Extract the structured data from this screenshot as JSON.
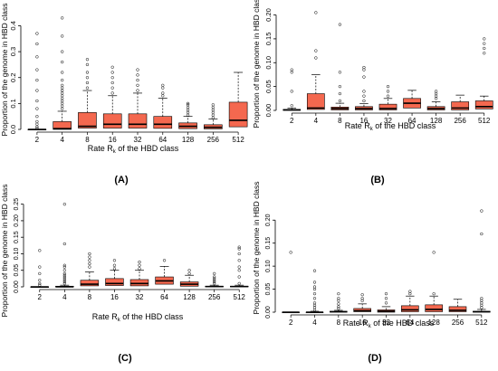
{
  "chart_data": [
    {
      "type": "box",
      "panel_label": "(A)",
      "xlabel": "Rate R",
      "xlabel_sub": "k",
      "xlabel_tail": " of the HBD class",
      "ylabel": "Proportion of the genome in HBD class",
      "categories": [
        "2",
        "4",
        "8",
        "16",
        "32",
        "64",
        "128",
        "256",
        "512"
      ],
      "ylim": [
        0,
        0.44
      ],
      "yticks": [
        0.0,
        0.1,
        0.2,
        0.3,
        0.4
      ],
      "ytick_labels": [
        "0.0",
        "0.1",
        "0.2",
        "0.3",
        "0.4"
      ],
      "boxes": [
        {
          "min": 0,
          "q1": 0,
          "median": 0,
          "q3": 0,
          "max": 0,
          "outliers": [
            0.005,
            0.01,
            0.02,
            0.03,
            0.05,
            0.08,
            0.11,
            0.15,
            0.19,
            0.23,
            0.28,
            0.33,
            0.37
          ]
        },
        {
          "min": 0,
          "q1": 0.0,
          "median": 0.003,
          "q3": 0.03,
          "max": 0.07,
          "outliers": [
            0.08,
            0.09,
            0.1,
            0.11,
            0.12,
            0.13,
            0.14,
            0.15,
            0.16,
            0.17,
            0.19,
            0.22,
            0.26,
            0.3,
            0.36,
            0.43
          ]
        },
        {
          "min": 0,
          "q1": 0.005,
          "median": 0.012,
          "q3": 0.065,
          "max": 0.15,
          "outliers": [
            0.16,
            0.18,
            0.2,
            0.22,
            0.25,
            0.27
          ]
        },
        {
          "min": 0,
          "q1": 0.005,
          "median": 0.02,
          "q3": 0.06,
          "max": 0.13,
          "outliers": [
            0.14,
            0.16,
            0.18,
            0.2,
            0.22,
            0.24
          ]
        },
        {
          "min": 0,
          "q1": 0.005,
          "median": 0.02,
          "q3": 0.06,
          "max": 0.14,
          "outliers": [
            0.15,
            0.17,
            0.19,
            0.21,
            0.23
          ]
        },
        {
          "min": 0,
          "q1": 0.004,
          "median": 0.02,
          "q3": 0.05,
          "max": 0.12,
          "outliers": [
            0.13,
            0.14,
            0.16,
            0.17
          ]
        },
        {
          "min": 0,
          "q1": 0.003,
          "median": 0.012,
          "q3": 0.025,
          "max": 0.05,
          "outliers": [
            0.055,
            0.065,
            0.075,
            0.085,
            0.095,
            0.1
          ]
        },
        {
          "min": 0,
          "q1": 0.002,
          "median": 0.008,
          "q3": 0.018,
          "max": 0.04,
          "outliers": [
            0.045,
            0.055,
            0.065,
            0.075,
            0.085,
            0.095
          ]
        },
        {
          "min": 0,
          "q1": 0.01,
          "median": 0.035,
          "q3": 0.105,
          "max": 0.22,
          "outliers": []
        }
      ]
    },
    {
      "type": "box",
      "panel_label": "(B)",
      "xlabel": "Rate R",
      "xlabel_sub": "k",
      "xlabel_tail": " of the HBD class",
      "ylabel": "Proportion of the genome in HBD class",
      "categories": [
        "2",
        "4",
        "8",
        "16",
        "32",
        "64",
        "128",
        "256",
        "512"
      ],
      "ylim": [
        0,
        0.22
      ],
      "yticks": [
        0.0,
        0.05,
        0.1,
        0.15,
        0.2
      ],
      "ytick_labels": [
        "0.00",
        "0.05",
        "0.10",
        "0.15",
        "0.20"
      ],
      "boxes": [
        {
          "min": 0,
          "q1": 0,
          "median": 0.001,
          "q3": 0.002,
          "max": 0.005,
          "outliers": [
            0.01,
            0.04,
            0.08,
            0.085
          ]
        },
        {
          "min": 0,
          "q1": 0.002,
          "median": 0.005,
          "q3": 0.035,
          "max": 0.075,
          "outliers": [
            0.11,
            0.125,
            0.205
          ]
        },
        {
          "min": 0,
          "q1": 0.001,
          "median": 0.004,
          "q3": 0.007,
          "max": 0.015,
          "outliers": [
            0.02,
            0.035,
            0.05,
            0.08,
            0.18
          ]
        },
        {
          "min": 0,
          "q1": 0.001,
          "median": 0.004,
          "q3": 0.008,
          "max": 0.014,
          "outliers": [
            0.02,
            0.03,
            0.04,
            0.07,
            0.085,
            0.09
          ]
        },
        {
          "min": 0,
          "q1": 0.001,
          "median": 0.004,
          "q3": 0.013,
          "max": 0.025,
          "outliers": [
            0.03,
            0.04,
            0.05
          ]
        },
        {
          "min": 0,
          "q1": 0.005,
          "median": 0.015,
          "q3": 0.025,
          "max": 0.042,
          "outliers": []
        },
        {
          "min": 0,
          "q1": 0.001,
          "median": 0.004,
          "q3": 0.008,
          "max": 0.018,
          "outliers": [
            0.025,
            0.03,
            0.035,
            0.04
          ]
        },
        {
          "min": 0,
          "q1": 0.001,
          "median": 0.005,
          "q3": 0.018,
          "max": 0.032,
          "outliers": []
        },
        {
          "min": 0,
          "q1": 0.003,
          "median": 0.008,
          "q3": 0.02,
          "max": 0.03,
          "outliers": [
            0.12,
            0.13,
            0.14,
            0.15
          ]
        }
      ]
    },
    {
      "type": "box",
      "panel_label": "(C)",
      "xlabel": "Rate R",
      "xlabel_sub": "k",
      "xlabel_tail": " of the HBD class",
      "ylabel": "Proportion of the genome in HBD class",
      "categories": [
        "2",
        "4",
        "8",
        "16",
        "32",
        "64",
        "128",
        "256",
        "512"
      ],
      "ylim": [
        0,
        0.26
      ],
      "yticks": [
        0.0,
        0.05,
        0.1,
        0.15,
        0.2,
        0.25
      ],
      "ytick_labels": [
        "0.00",
        "0.05",
        "0.10",
        "0.15",
        "0.20",
        "0.25"
      ],
      "boxes": [
        {
          "min": 0,
          "q1": 0,
          "median": 0,
          "q3": 0,
          "max": 0,
          "outliers": [
            0.005,
            0.01,
            0.02,
            0.04,
            0.06,
            0.11
          ]
        },
        {
          "min": 0,
          "q1": 0,
          "median": 0,
          "q3": 0.002,
          "max": 0.005,
          "outliers": [
            0.01,
            0.015,
            0.02,
            0.025,
            0.03,
            0.035,
            0.04,
            0.05,
            0.06,
            0.065,
            0.13,
            0.25
          ]
        },
        {
          "min": 0,
          "q1": 0.003,
          "median": 0.008,
          "q3": 0.02,
          "max": 0.045,
          "outliers": [
            0.06,
            0.07,
            0.08,
            0.09,
            0.1
          ]
        },
        {
          "min": 0,
          "q1": 0.004,
          "median": 0.01,
          "q3": 0.025,
          "max": 0.05,
          "outliers": [
            0.055,
            0.065,
            0.08
          ]
        },
        {
          "min": 0,
          "q1": 0.003,
          "median": 0.01,
          "q3": 0.022,
          "max": 0.05,
          "outliers": [
            0.055,
            0.065,
            0.075
          ]
        },
        {
          "min": 0,
          "q1": 0.008,
          "median": 0.018,
          "q3": 0.03,
          "max": 0.062,
          "outliers": [
            0.08
          ]
        },
        {
          "min": 0,
          "q1": 0.002,
          "median": 0.008,
          "q3": 0.015,
          "max": 0.035,
          "outliers": [
            0.04,
            0.05
          ]
        },
        {
          "min": 0,
          "q1": 0,
          "median": 0.001,
          "q3": 0.002,
          "max": 0.005,
          "outliers": [
            0.01,
            0.015,
            0.02,
            0.025,
            0.03,
            0.04
          ]
        },
        {
          "min": 0,
          "q1": 0,
          "median": 0.001,
          "q3": 0.002,
          "max": 0.005,
          "outliers": [
            0.01,
            0.03,
            0.05,
            0.06,
            0.08,
            0.1,
            0.115,
            0.12
          ]
        }
      ]
    },
    {
      "type": "box",
      "panel_label": "(D)",
      "xlabel": "Rate R",
      "xlabel_sub": "k",
      "xlabel_tail": " of the HBD class",
      "ylabel": "Proportion of the genome in HBD class",
      "categories": [
        "2",
        "4",
        "8",
        "16",
        "32",
        "64",
        "128",
        "256",
        "512"
      ],
      "ylim": [
        0,
        0.23
      ],
      "yticks": [
        0.0,
        0.05,
        0.1,
        0.15,
        0.2
      ],
      "ytick_labels": [
        "0.00",
        "0.05",
        "0.10",
        "0.15",
        "0.20"
      ],
      "boxes": [
        {
          "min": 0,
          "q1": 0,
          "median": 0,
          "q3": 0,
          "max": 0,
          "outliers": [
            0.13
          ]
        },
        {
          "min": 0,
          "q1": 0,
          "median": 0,
          "q3": 0,
          "max": 0.002,
          "outliers": [
            0.005,
            0.01,
            0.015,
            0.02,
            0.03,
            0.04,
            0.05,
            0.055,
            0.065,
            0.09
          ]
        },
        {
          "min": 0,
          "q1": 0,
          "median": 0.001,
          "q3": 0.002,
          "max": 0.004,
          "outliers": [
            0.008,
            0.012,
            0.018,
            0.025,
            0.03,
            0.04
          ]
        },
        {
          "min": 0,
          "q1": 0.001,
          "median": 0.003,
          "q3": 0.008,
          "max": 0.018,
          "outliers": [
            0.025,
            0.03,
            0.038
          ]
        },
        {
          "min": 0,
          "q1": 0,
          "median": 0.002,
          "q3": 0.005,
          "max": 0.012,
          "outliers": [
            0.02,
            0.03,
            0.04
          ]
        },
        {
          "min": 0,
          "q1": 0.001,
          "median": 0.005,
          "q3": 0.014,
          "max": 0.035,
          "outliers": [
            0.04,
            0.045
          ]
        },
        {
          "min": 0,
          "q1": 0.001,
          "median": 0.006,
          "q3": 0.016,
          "max": 0.035,
          "outliers": [
            0.04,
            0.13
          ]
        },
        {
          "min": 0,
          "q1": 0.001,
          "median": 0.004,
          "q3": 0.012,
          "max": 0.028,
          "outliers": []
        },
        {
          "min": 0,
          "q1": 0,
          "median": 0.001,
          "q3": 0.002,
          "max": 0.006,
          "outliers": [
            0.01,
            0.015,
            0.02,
            0.025,
            0.03,
            0.17,
            0.22
          ]
        }
      ]
    }
  ],
  "colors": {
    "box_fill": "#f4684f",
    "box_stroke": "#000000",
    "median": "#000000",
    "axis": "#000000",
    "outlier_stroke": "#000000"
  }
}
